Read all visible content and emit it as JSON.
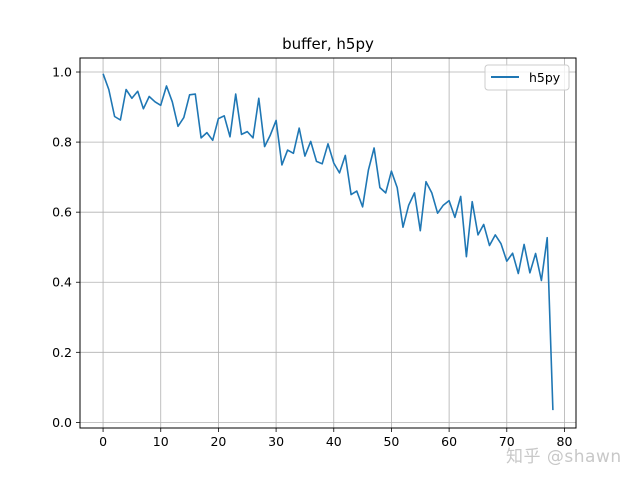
{
  "chart_data": {
    "type": "line",
    "title": "buffer, h5py",
    "xlabel": "",
    "ylabel": "",
    "xlim": [
      -4,
      82
    ],
    "ylim": [
      -0.016,
      1.04
    ],
    "xticks": [
      0,
      10,
      20,
      30,
      40,
      50,
      60,
      70,
      80
    ],
    "yticks": [
      0.0,
      0.2,
      0.4,
      0.6,
      0.8,
      1.0
    ],
    "xtick_labels": [
      "0",
      "10",
      "20",
      "30",
      "40",
      "50",
      "60",
      "70",
      "80"
    ],
    "ytick_labels": [
      "0.0",
      "0.2",
      "0.4",
      "0.6",
      "0.8",
      "1.0"
    ],
    "grid": true,
    "legend_position": "upper right",
    "series": [
      {
        "name": "h5py",
        "color": "#1f77b4",
        "x": [
          0,
          1,
          2,
          3,
          4,
          5,
          6,
          7,
          8,
          9,
          10,
          11,
          12,
          13,
          14,
          15,
          16,
          17,
          18,
          19,
          20,
          21,
          22,
          23,
          24,
          25,
          26,
          27,
          28,
          29,
          30,
          31,
          32,
          33,
          34,
          35,
          36,
          37,
          38,
          39,
          40,
          41,
          42,
          43,
          44,
          45,
          46,
          47,
          48,
          49,
          50,
          51,
          52,
          53,
          54,
          55,
          56,
          57,
          58,
          59,
          60,
          61,
          62,
          63,
          64,
          65,
          66,
          67,
          68,
          69,
          70,
          71,
          72,
          73,
          74,
          75,
          76,
          77,
          78
        ],
        "values": [
          0.995,
          0.95,
          0.873,
          0.863,
          0.95,
          0.925,
          0.945,
          0.895,
          0.93,
          0.915,
          0.905,
          0.96,
          0.915,
          0.845,
          0.87,
          0.935,
          0.937,
          0.812,
          0.827,
          0.805,
          0.867,
          0.875,
          0.815,
          0.937,
          0.822,
          0.83,
          0.812,
          0.925,
          0.787,
          0.82,
          0.862,
          0.735,
          0.777,
          0.768,
          0.84,
          0.76,
          0.802,
          0.745,
          0.738,
          0.795,
          0.74,
          0.712,
          0.762,
          0.65,
          0.66,
          0.615,
          0.72,
          0.783,
          0.67,
          0.655,
          0.717,
          0.67,
          0.557,
          0.62,
          0.655,
          0.547,
          0.687,
          0.655,
          0.597,
          0.62,
          0.633,
          0.585,
          0.645,
          0.473,
          0.63,
          0.535,
          0.565,
          0.505,
          0.535,
          0.51,
          0.46,
          0.483,
          0.425,
          0.508,
          0.427,
          0.482,
          0.405,
          0.527,
          0.035
        ]
      }
    ]
  },
  "watermark": "知乎 @shawn"
}
